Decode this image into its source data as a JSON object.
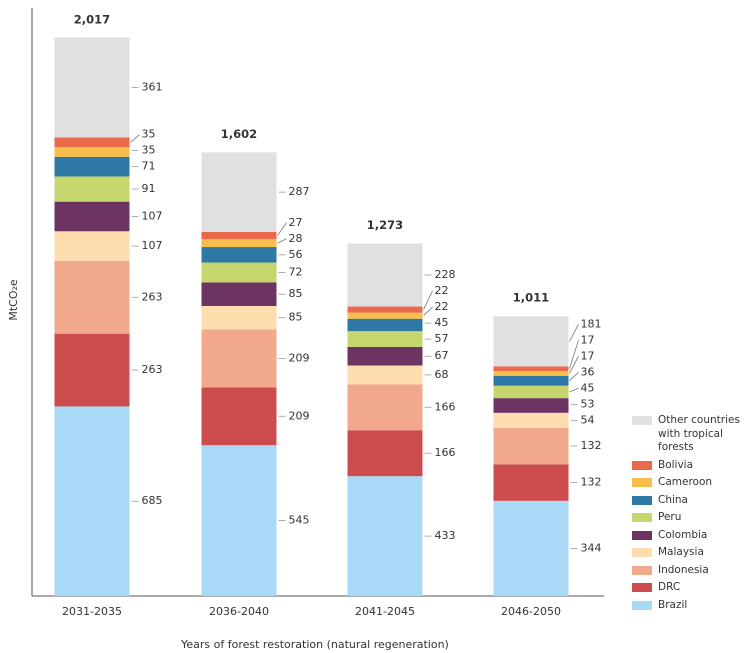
{
  "chart_data": {
    "type": "stacked-bar",
    "y_label": "MtCO₂e",
    "x_label": "Years of forest restoration (natural regeneration)",
    "categories": [
      "2031-2035",
      "2036-2040",
      "2041-2045",
      "2046-2050"
    ],
    "ylim": [
      0,
      2020
    ],
    "series": [
      {
        "name": "Brazil",
        "color": "#a8d9f6",
        "values": [
          685,
          545,
          433,
          344
        ]
      },
      {
        "name": "DRC",
        "color": "#cc4c4e",
        "values": [
          263,
          209,
          166,
          132
        ]
      },
      {
        "name": "Indonesia",
        "color": "#f2a88a",
        "values": [
          263,
          209,
          166,
          132
        ]
      },
      {
        "name": "Malaysia",
        "color": "#fddcae",
        "values": [
          107,
          85,
          68,
          54
        ]
      },
      {
        "name": "Colombia",
        "color": "#6d3463",
        "values": [
          107,
          85,
          67,
          53
        ]
      },
      {
        "name": "Peru",
        "color": "#c5d66c",
        "values": [
          91,
          72,
          57,
          45
        ]
      },
      {
        "name": "China",
        "color": "#2e78a6",
        "values": [
          71,
          56,
          45,
          36
        ]
      },
      {
        "name": "Cameroon",
        "color": "#f8be4b",
        "values": [
          35,
          28,
          22,
          17
        ]
      },
      {
        "name": "Bolivia",
        "color": "#e96a4b",
        "values": [
          35,
          27,
          22,
          17
        ]
      },
      {
        "name": "Other countries with tropical forests",
        "color": "#e0e0e0",
        "values": [
          361,
          287,
          228,
          181
        ]
      }
    ],
    "totals": {
      "values": [
        2017,
        1602,
        1273,
        1011
      ],
      "value_labels": [
        "2,017",
        "1,602",
        "1,273",
        "1,011"
      ]
    }
  }
}
